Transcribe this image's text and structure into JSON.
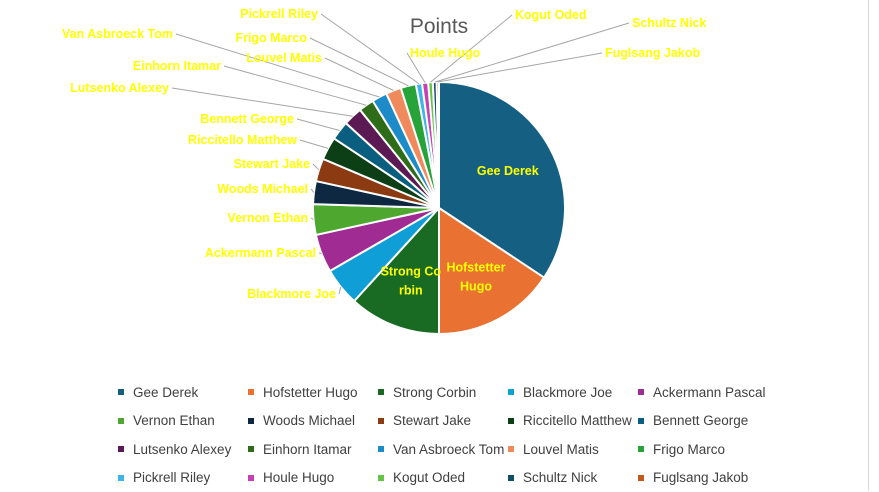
{
  "chart_data": {
    "type": "pie",
    "title": "Points",
    "categories": [
      "Gee Derek",
      "Hofstetter Hugo",
      "Strong Corbin",
      "Blackmore Joe",
      "Ackermann Pascal",
      "Vernon Ethan",
      "Woods Michael",
      "Stewart Jake",
      "Riccitello Matthew",
      "Bennett George",
      "Lutsenko Alexey",
      "Einhorn Itamar",
      "Van Asbroeck Tom",
      "Louvel Matis",
      "Frigo Marco",
      "Pickrell Riley",
      "Houle Hugo",
      "Kogut Oded",
      "Schultz Nick",
      "Fuglsang Jakob"
    ],
    "values": [
      350,
      160,
      120,
      50,
      50,
      40,
      30,
      30,
      30,
      25,
      25,
      20,
      20,
      20,
      20,
      8,
      8,
      6,
      5,
      3
    ],
    "colors": [
      "#156082",
      "#E97132",
      "#196B24",
      "#0F9ED5",
      "#A02B93",
      "#4EA72E",
      "#0E2841",
      "#8C3A11",
      "#0C3F16",
      "#0A5E80",
      "#5B1A53",
      "#2F6C1A",
      "#1E8BC9",
      "#F08A5D",
      "#27A33A",
      "#3FB4E8",
      "#C441B6",
      "#66C34A",
      "#124D66",
      "#C25A20"
    ],
    "inside_labels": {
      "Gee Derek": "Gee Derek",
      "Hofstetter Hugo": "Hofstetter Hugo",
      "Strong Corbin": "Strong Co rbin"
    },
    "legend_position": "bottom",
    "data_label_color": "#FFFF00"
  }
}
